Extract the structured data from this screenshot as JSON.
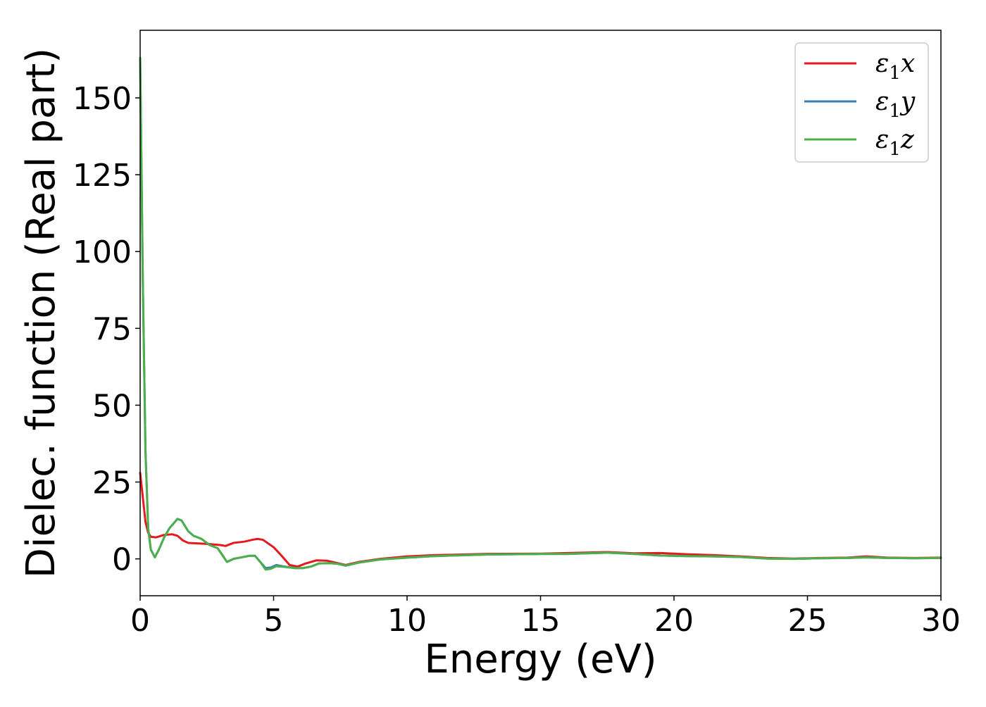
{
  "chart_data": {
    "type": "line",
    "title": "",
    "xlabel": "Energy (eV)",
    "ylabel": "Dielec. function (Real part)",
    "xlim": [
      0,
      30
    ],
    "ylim": [
      -12,
      172
    ],
    "xticks": [
      0,
      5,
      10,
      15,
      20,
      25,
      30
    ],
    "yticks": [
      0,
      25,
      50,
      75,
      100,
      125,
      150
    ],
    "grid": false,
    "legend_position": "top-right",
    "series": [
      {
        "name": "ε1x",
        "legend_main": "ε",
        "legend_sub": "1",
        "legend_suffix": "x",
        "color": "#e41a1c",
        "points": [
          [
            0,
            28
          ],
          [
            0.1,
            20
          ],
          [
            0.2,
            12
          ],
          [
            0.3,
            8.5
          ],
          [
            0.4,
            7.2
          ],
          [
            0.6,
            7
          ],
          [
            0.9,
            7.8
          ],
          [
            1.2,
            8
          ],
          [
            1.4,
            7.5
          ],
          [
            1.6,
            6
          ],
          [
            1.8,
            5.2
          ],
          [
            2.2,
            5
          ],
          [
            2.6,
            4.8
          ],
          [
            3.0,
            4.5
          ],
          [
            3.2,
            4.2
          ],
          [
            3.5,
            5.2
          ],
          [
            3.9,
            5.6
          ],
          [
            4.2,
            6.2
          ],
          [
            4.4,
            6.5
          ],
          [
            4.6,
            6.2
          ],
          [
            4.8,
            5
          ],
          [
            5.0,
            3.8
          ],
          [
            5.3,
            1
          ],
          [
            5.6,
            -2
          ],
          [
            5.9,
            -2.5
          ],
          [
            6.2,
            -1.5
          ],
          [
            6.6,
            -0.5
          ],
          [
            7.0,
            -0.6
          ],
          [
            7.3,
            -1.2
          ],
          [
            7.7,
            -2
          ],
          [
            8.2,
            -1
          ],
          [
            9,
            0
          ],
          [
            10,
            0.8
          ],
          [
            11,
            1.2
          ],
          [
            13,
            1.6
          ],
          [
            15,
            1.7
          ],
          [
            16,
            1.9
          ],
          [
            17.5,
            2.2
          ],
          [
            18.5,
            1.8
          ],
          [
            19.5,
            1.9
          ],
          [
            20.5,
            1.5
          ],
          [
            21.5,
            1.2
          ],
          [
            22.5,
            0.8
          ],
          [
            23.5,
            0.3
          ],
          [
            24.5,
            0.1
          ],
          [
            25.5,
            0.3
          ],
          [
            26.5,
            0.4
          ],
          [
            27.2,
            0.8
          ],
          [
            28,
            0.4
          ],
          [
            29,
            0.3
          ],
          [
            30,
            0.4
          ]
        ]
      },
      {
        "name": "ε1y",
        "legend_main": "ε",
        "legend_sub": "1",
        "legend_suffix": "y",
        "color": "#377eb8",
        "points": [
          [
            0,
            163
          ],
          [
            0.1,
            90
          ],
          [
            0.2,
            35
          ],
          [
            0.3,
            10
          ],
          [
            0.4,
            3
          ],
          [
            0.55,
            0.5
          ],
          [
            0.7,
            3
          ],
          [
            0.9,
            7
          ],
          [
            1.1,
            10
          ],
          [
            1.4,
            13
          ],
          [
            1.55,
            12.5
          ],
          [
            1.8,
            9
          ],
          [
            2.0,
            7.5
          ],
          [
            2.3,
            6.5
          ],
          [
            2.6,
            4.5
          ],
          [
            2.9,
            3.5
          ],
          [
            3.1,
            1
          ],
          [
            3.25,
            -1
          ],
          [
            3.5,
            0
          ],
          [
            3.8,
            0.5
          ],
          [
            4.1,
            1
          ],
          [
            4.3,
            1
          ],
          [
            4.5,
            -1
          ],
          [
            4.7,
            -3
          ],
          [
            4.9,
            -2.8
          ],
          [
            5.1,
            -2
          ],
          [
            5.4,
            -2.5
          ],
          [
            5.8,
            -3
          ],
          [
            6.1,
            -3
          ],
          [
            6.4,
            -2.5
          ],
          [
            6.7,
            -1.5
          ],
          [
            7.1,
            -1.4
          ],
          [
            7.4,
            -1.6
          ],
          [
            7.7,
            -2.2
          ],
          [
            8.2,
            -1.2
          ],
          [
            9,
            -0.2
          ],
          [
            10,
            0.4
          ],
          [
            11,
            0.9
          ],
          [
            13,
            1.4
          ],
          [
            15,
            1.6
          ],
          [
            16,
            1.6
          ],
          [
            17.5,
            2.0
          ],
          [
            18.5,
            1.6
          ],
          [
            19.5,
            1.1
          ],
          [
            20.5,
            0.9
          ],
          [
            21.5,
            0.8
          ],
          [
            22.5,
            0.6
          ],
          [
            23.5,
            0.1
          ],
          [
            24.5,
            0
          ],
          [
            25.5,
            0.2
          ],
          [
            26.5,
            0.3
          ],
          [
            27.2,
            0.5
          ],
          [
            28,
            0.3
          ],
          [
            29,
            0.2
          ],
          [
            30,
            0.3
          ]
        ]
      },
      {
        "name": "ε1z",
        "legend_main": "ε",
        "legend_sub": "1",
        "legend_suffix": "z",
        "color": "#4daf4a",
        "points": [
          [
            0,
            163
          ],
          [
            0.1,
            90
          ],
          [
            0.2,
            35
          ],
          [
            0.3,
            10
          ],
          [
            0.4,
            3
          ],
          [
            0.55,
            0.5
          ],
          [
            0.7,
            3
          ],
          [
            0.9,
            7
          ],
          [
            1.1,
            10
          ],
          [
            1.4,
            13
          ],
          [
            1.55,
            12.5
          ],
          [
            1.8,
            9
          ],
          [
            2.0,
            7.5
          ],
          [
            2.3,
            6.5
          ],
          [
            2.6,
            4.5
          ],
          [
            2.9,
            3.5
          ],
          [
            3.1,
            1
          ],
          [
            3.25,
            -1
          ],
          [
            3.5,
            0
          ],
          [
            3.8,
            0.5
          ],
          [
            4.1,
            1
          ],
          [
            4.3,
            1
          ],
          [
            4.5,
            -1
          ],
          [
            4.7,
            -3.5
          ],
          [
            4.9,
            -3.2
          ],
          [
            5.1,
            -2.4
          ],
          [
            5.4,
            -2.6
          ],
          [
            5.8,
            -3
          ],
          [
            6.1,
            -3
          ],
          [
            6.4,
            -2.5
          ],
          [
            6.7,
            -1.5
          ],
          [
            7.1,
            -1.4
          ],
          [
            7.4,
            -1.6
          ],
          [
            7.7,
            -2.2
          ],
          [
            8.2,
            -1.2
          ],
          [
            9,
            -0.2
          ],
          [
            10,
            0.4
          ],
          [
            11,
            0.9
          ],
          [
            13,
            1.4
          ],
          [
            15,
            1.6
          ],
          [
            16,
            1.6
          ],
          [
            17.5,
            2.0
          ],
          [
            18.5,
            1.6
          ],
          [
            19.5,
            1.1
          ],
          [
            20.5,
            0.9
          ],
          [
            21.5,
            0.8
          ],
          [
            22.5,
            0.6
          ],
          [
            23.5,
            0.1
          ],
          [
            24.5,
            0
          ],
          [
            25.5,
            0.2
          ],
          [
            26.5,
            0.3
          ],
          [
            27.2,
            0.5
          ],
          [
            28,
            0.3
          ],
          [
            29,
            0.2
          ],
          [
            30,
            0.3
          ]
        ]
      }
    ]
  }
}
